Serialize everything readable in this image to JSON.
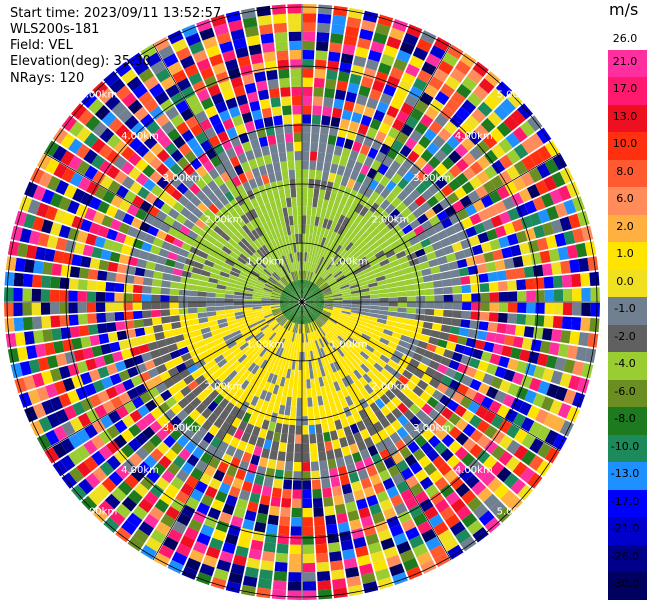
{
  "header": {
    "start_time": "Start time: 2023/09/11 13:52:57",
    "instrument": "WLS200s-181",
    "field": "Field: VEL",
    "elevation": "Elevation(deg): 35.30",
    "nrays": "NRays: 120"
  },
  "chart_data": {
    "type": "ppi",
    "field": "VEL",
    "units": "m/s",
    "nrays": 120,
    "range_rings_labels": [
      "1.00km",
      "2.00km",
      "3.00km",
      "4.00km",
      "5.00km"
    ],
    "colorbar": {
      "unit_label": "m/s",
      "ticks": [
        "26.0",
        "21.0",
        "17.0",
        "13.0",
        "10.0",
        "8.0",
        "6.0",
        "2.0",
        "1.0",
        "0.0",
        "-1.0",
        "-2.0",
        "-4.0",
        "-6.0",
        "-8.0",
        "-10.0",
        "-13.0",
        "-17.0",
        "-21.0",
        "-26.0",
        "-30.0"
      ],
      "colors": [
        "#ffffff",
        "#ff2fa0",
        "#ff1a70",
        "#ee1020",
        "#ff3010",
        "#ff5a30",
        "#ff8c5a",
        "#ffb040",
        "#ffe400",
        "#f0e020",
        "#708090",
        "#606060",
        "#9acd32",
        "#6b8e23",
        "#1e7a1e",
        "#1c8a5a",
        "#1e90ff",
        "#0000ff",
        "#0000cc",
        "#00008b",
        "#000060"
      ]
    }
  }
}
